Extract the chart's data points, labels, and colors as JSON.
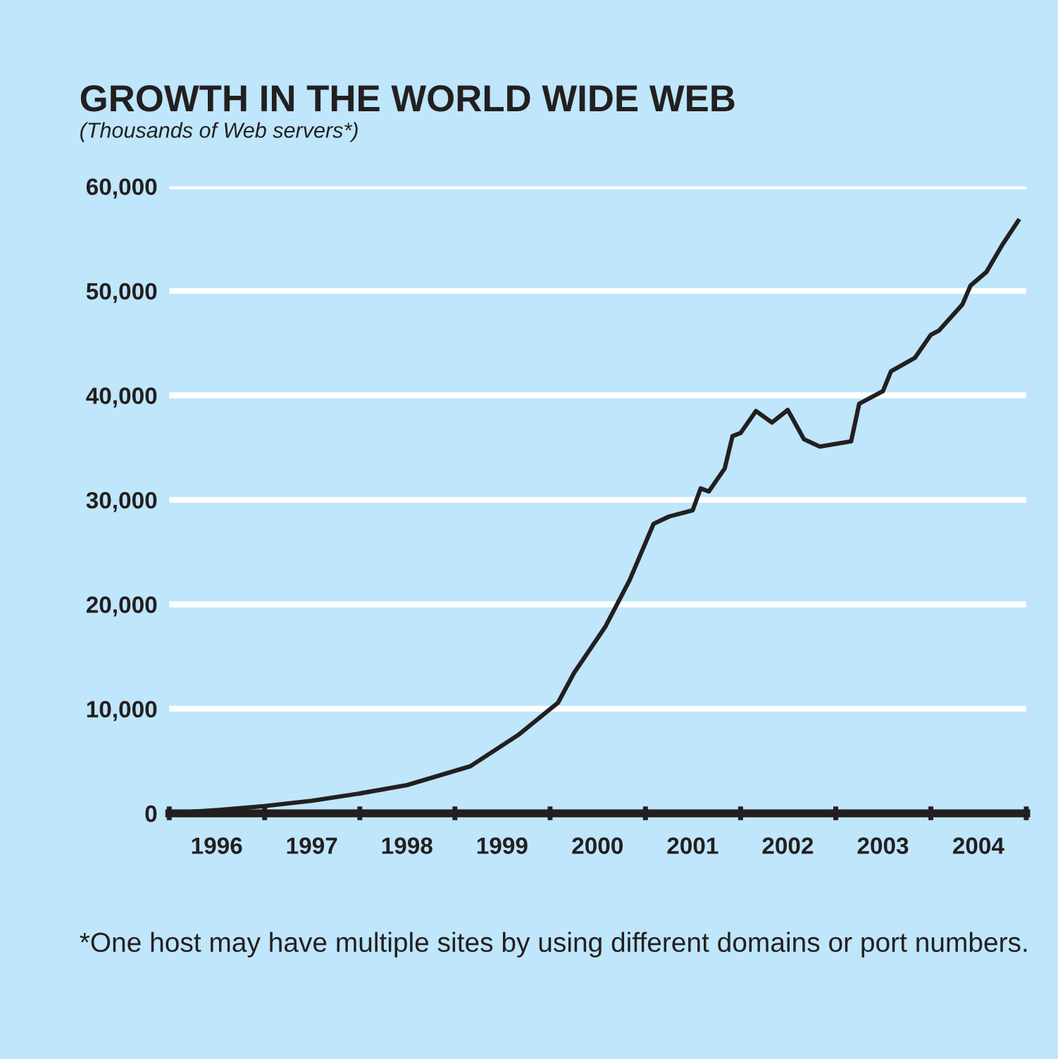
{
  "chart_data": {
    "type": "line",
    "title": "GROWTH IN THE WORLD WIDE WEB",
    "subtitle": "(Thousands of Web servers*)",
    "annotations": [
      "*One host may have multiple sites by using different domains or port numbers."
    ],
    "x": [
      "1996-01",
      "1996-07",
      "1997-01",
      "1997-07",
      "1998-01",
      "1998-07",
      "1999-03",
      "1999-09",
      "2000-02",
      "2000-04",
      "2000-08",
      "2000-11",
      "2001-02",
      "2001-04",
      "2001-07",
      "2001-08",
      "2001-09",
      "2001-11",
      "2001-12",
      "2002-01",
      "2002-03",
      "2002-05",
      "2002-07",
      "2002-09",
      "2002-11",
      "2003-03",
      "2003-04",
      "2003-07",
      "2003-08",
      "2003-11",
      "2004-01",
      "2004-02",
      "2004-05",
      "2004-06",
      "2004-08",
      "2004-10",
      "2004-12"
    ],
    "series": [
      {
        "color": "#231f20",
        "values": [
          0,
          300,
          700,
          1200,
          1900,
          2700,
          4500,
          7500,
          10600,
          13400,
          17900,
          22300,
          27700,
          28400,
          29000,
          31100,
          30800,
          33000,
          36100,
          36400,
          38500,
          37400,
          38600,
          35800,
          35100,
          35600,
          39200,
          40400,
          42300,
          43600,
          45800,
          46200,
          48700,
          50500,
          51800,
          54400,
          56700
        ]
      }
    ],
    "xlim": [
      "1996-01",
      "2005-01"
    ],
    "xticks": [
      {
        "value": "1996-01",
        "label": null
      },
      {
        "value": "1997-01",
        "label": null
      },
      {
        "value": "1998-01",
        "label": null
      },
      {
        "value": "1999-01",
        "label": null
      },
      {
        "value": "2000-01",
        "label": null
      },
      {
        "value": "2001-01",
        "label": null
      },
      {
        "value": "2002-01",
        "label": null
      },
      {
        "value": "2003-01",
        "label": null
      },
      {
        "value": "2004-01",
        "label": null
      },
      {
        "value": "2005-01",
        "label": null
      },
      {
        "value": "1996-07",
        "label": "1996"
      },
      {
        "value": "1997-07",
        "label": "1997"
      },
      {
        "value": "1998-07",
        "label": "1998"
      },
      {
        "value": "1999-07",
        "label": "1999"
      },
      {
        "value": "2000-07",
        "label": "2000"
      },
      {
        "value": "2001-07",
        "label": "2001"
      },
      {
        "value": "2002-07",
        "label": "2002"
      },
      {
        "value": "2003-07",
        "label": "2003"
      },
      {
        "value": "2004-07",
        "label": "2004"
      }
    ],
    "ylim": [
      0,
      60000
    ],
    "yticks": [
      {
        "value": 0,
        "label": "0"
      },
      {
        "value": 10000,
        "label": "10,000"
      },
      {
        "value": 20000,
        "label": "20,000"
      },
      {
        "value": 30000,
        "label": "30,000"
      },
      {
        "value": 40000,
        "label": "40,000"
      },
      {
        "value": 50000,
        "label": "50,000"
      },
      {
        "value": 60000,
        "label": "60,000"
      }
    ],
    "grid": "y",
    "line_style": "solid",
    "marker": "none"
  }
}
